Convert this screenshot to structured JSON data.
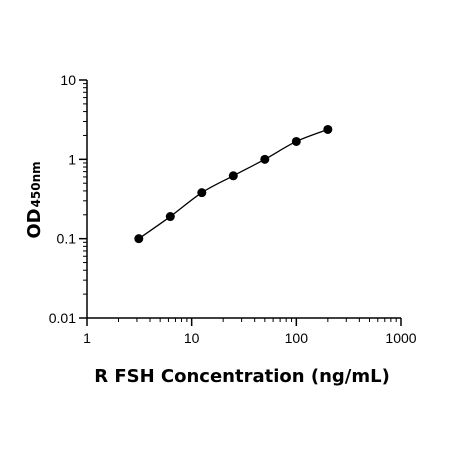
{
  "chart_data": {
    "type": "scatter",
    "title": "",
    "xlabel": "R FSH Concentration (ng/mL)",
    "ylabel": "OD",
    "ylabel_subscript": "450nm",
    "xscale": "log",
    "yscale": "log",
    "xlim": [
      1,
      1000
    ],
    "ylim": [
      0.01,
      10
    ],
    "x_ticks": [
      1,
      10,
      100,
      1000
    ],
    "y_ticks": [
      0.01,
      0.1,
      1,
      10
    ],
    "x_tick_labels": [
      "1",
      "10",
      "100",
      "1000"
    ],
    "y_tick_labels": [
      "0.01",
      "0.1",
      "1",
      "10"
    ],
    "grid": false,
    "legend": "none",
    "series": [
      {
        "x": [
          3.125,
          6.25,
          12.5,
          25,
          50,
          100,
          200
        ],
        "y": [
          0.1,
          0.19,
          0.38,
          0.62,
          1.0,
          1.68,
          2.38
        ],
        "color": "#000000",
        "marker": "circle",
        "fit_curve": true
      }
    ]
  }
}
